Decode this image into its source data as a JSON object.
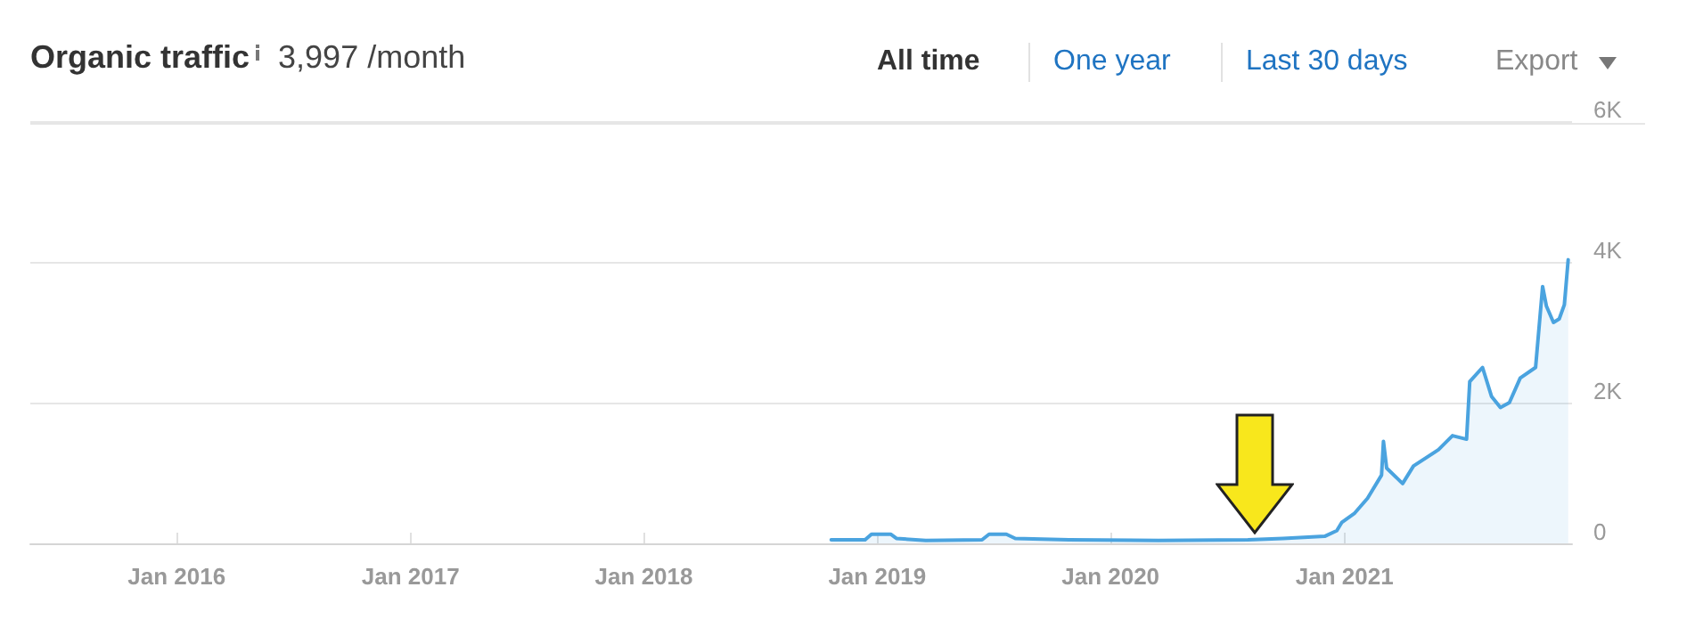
{
  "chart_data": {
    "type": "area",
    "title": "Organic traffic",
    "subtitle": "3,997 /month",
    "annotations": [
      "All time",
      "One year",
      "Last 30 days",
      "Export"
    ],
    "x": [
      "2018-10-21",
      "2018-12-13",
      "2018-12-23",
      "2019-01-22",
      "2019-01-31",
      "2019-03-18",
      "2019-06-14",
      "2019-06-25",
      "2019-07-22",
      "2019-08-05",
      "2019-10-28",
      "2020-03-16",
      "2020-08-03",
      "2020-09-27",
      "2020-12-01",
      "2020-12-20",
      "2020-12-28",
      "2021-01-17",
      "2021-02-06",
      "2021-02-28",
      "2021-03-03",
      "2021-03-08",
      "2021-04-02",
      "2021-04-19",
      "2021-05-28",
      "2021-06-19",
      "2021-07-11",
      "2021-07-16",
      "2021-08-05",
      "2021-08-19",
      "2021-09-02",
      "2021-09-16",
      "2021-10-03",
      "2021-10-27",
      "2021-11-07",
      "2021-11-13",
      "2021-11-24",
      "2021-12-03",
      "2021-12-11",
      "2021-12-17"
    ],
    "series": [
      {
        "color": "#4aa3df",
        "values": [
          50,
          50,
          130,
          130,
          70,
          40,
          50,
          130,
          130,
          70,
          50,
          40,
          50,
          70,
          100,
          180,
          300,
          430,
          640,
          970,
          1450,
          1070,
          850,
          1100,
          1330,
          1530,
          1480,
          2300,
          2500,
          2090,
          1930,
          2000,
          2350,
          2500,
          3650,
          3370,
          3140,
          3190,
          3390,
          4030
        ]
      }
    ],
    "xlim": [
      "2015-05-17",
      "2021-12-23"
    ],
    "xticks": [
      {
        "value": "2016-01",
        "label": "Jan 2016"
      },
      {
        "value": "2017-01",
        "label": "Jan 2017"
      },
      {
        "value": "2018-01",
        "label": "Jan 2018"
      },
      {
        "value": "2019-01",
        "label": "Jan 2019"
      },
      {
        "value": "2020-01",
        "label": "Jan 2020"
      },
      {
        "value": "2021-01",
        "label": "Jan 2021"
      }
    ],
    "ylim": [
      0,
      6000
    ],
    "yticks": [
      0,
      {
        "value": 2000,
        "label": "2K"
      },
      {
        "value": 4000,
        "label": "4K"
      },
      {
        "value": 6000,
        "label": "6K"
      }
    ],
    "grid": "y",
    "marker": "none",
    "line_style": "solid"
  }
}
